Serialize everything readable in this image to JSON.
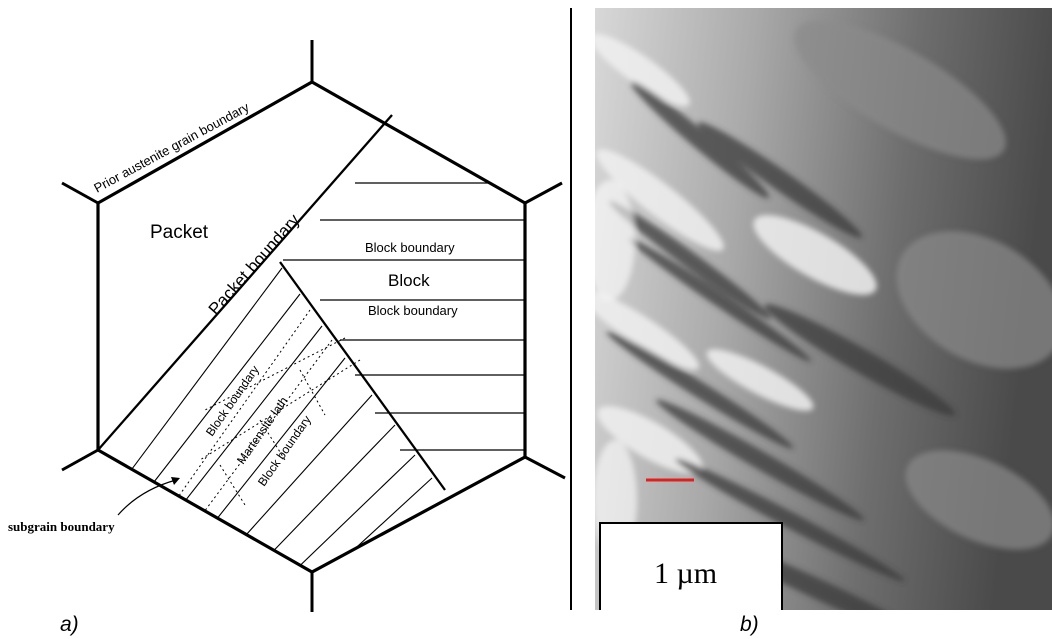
{
  "panel_a": {
    "caption": "a)",
    "labels": {
      "prior_austenite_grain_boundary": "Prior austenite grain boundary",
      "packet": "Packet",
      "packet_boundary": "Packet boundary",
      "block_boundary_top": "Block boundary",
      "block": "Block",
      "block_boundary_mid": "Block boundary",
      "block_boundary_lower_left": "Block boundary",
      "martensite_lath": "Martensite lath",
      "block_boundary_lower_right": "Block boundary",
      "subgrain_boundary": "subgrain boundary"
    }
  },
  "panel_b": {
    "caption": "b)",
    "scale_bar_label": "1 µm",
    "scale_bar_color": "#e02020"
  }
}
